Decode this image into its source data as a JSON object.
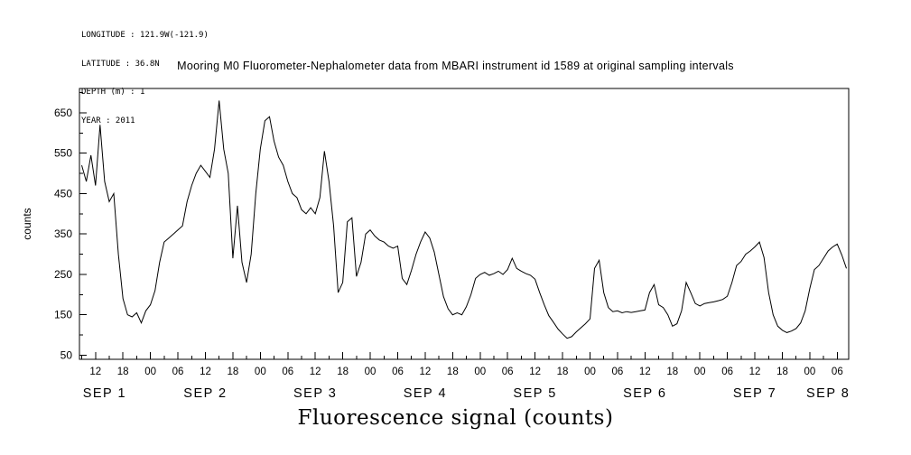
{
  "header": {
    "longitude": "LONGITUDE : 121.9W(-121.9)",
    "latitude": "LATITUDE : 36.8N",
    "depth": "DEPTH (m) : 1",
    "year": "YEAR : 2011"
  },
  "chart_data": {
    "type": "line",
    "title": "Mooring M0 Fluorometer-Nephalometer data from MBARI instrument id 1589 at original sampling intervals",
    "xlabel": "Fluorescence signal (counts)",
    "ylabel": "counts",
    "series_name": "Fluorescence signal",
    "line_color": "#000000",
    "x_unit": "hours from SEP 1 00:00, YEAR 2011",
    "x_start": 9,
    "x_step": 1,
    "xlim": [
      8.5,
      176.5
    ],
    "ylim": [
      40,
      710
    ],
    "y_ticks": [
      50,
      150,
      250,
      350,
      450,
      550,
      650
    ],
    "x_ticks": [
      {
        "t": 12,
        "label": "12"
      },
      {
        "t": 18,
        "label": "18"
      },
      {
        "t": 24,
        "label": "00"
      },
      {
        "t": 30,
        "label": "06"
      },
      {
        "t": 36,
        "label": "12"
      },
      {
        "t": 42,
        "label": "18"
      },
      {
        "t": 48,
        "label": "00"
      },
      {
        "t": 54,
        "label": "06"
      },
      {
        "t": 60,
        "label": "12"
      },
      {
        "t": 66,
        "label": "18"
      },
      {
        "t": 72,
        "label": "00"
      },
      {
        "t": 78,
        "label": "06"
      },
      {
        "t": 84,
        "label": "12"
      },
      {
        "t": 90,
        "label": "18"
      },
      {
        "t": 96,
        "label": "00"
      },
      {
        "t": 102,
        "label": "06"
      },
      {
        "t": 108,
        "label": "12"
      },
      {
        "t": 114,
        "label": "18"
      },
      {
        "t": 120,
        "label": "00"
      },
      {
        "t": 126,
        "label": "06"
      },
      {
        "t": 132,
        "label": "12"
      },
      {
        "t": 138,
        "label": "18"
      },
      {
        "t": 144,
        "label": "00"
      },
      {
        "t": 150,
        "label": "06"
      },
      {
        "t": 156,
        "label": "12"
      },
      {
        "t": 162,
        "label": "18"
      },
      {
        "t": 168,
        "label": "00"
      },
      {
        "t": 174,
        "label": "06"
      }
    ],
    "day_labels": [
      {
        "t": 14,
        "label": "SEP 1"
      },
      {
        "t": 36,
        "label": "SEP 2"
      },
      {
        "t": 60,
        "label": "SEP 3"
      },
      {
        "t": 84,
        "label": "SEP 4"
      },
      {
        "t": 108,
        "label": "SEP 5"
      },
      {
        "t": 132,
        "label": "SEP 6"
      },
      {
        "t": 156,
        "label": "SEP 7"
      },
      {
        "t": 172,
        "label": "SEP 8"
      }
    ],
    "values": [
      520,
      480,
      545,
      470,
      620,
      480,
      430,
      450,
      300,
      190,
      150,
      145,
      155,
      130,
      160,
      175,
      210,
      280,
      330,
      340,
      350,
      360,
      370,
      430,
      470,
      500,
      520,
      505,
      490,
      560,
      680,
      560,
      500,
      290,
      420,
      280,
      230,
      300,
      450,
      560,
      630,
      640,
      580,
      540,
      520,
      480,
      450,
      440,
      410,
      400,
      415,
      400,
      440,
      555,
      480,
      370,
      205,
      230,
      380,
      390,
      245,
      280,
      350,
      360,
      345,
      335,
      330,
      320,
      315,
      320,
      240,
      225,
      260,
      300,
      330,
      355,
      340,
      305,
      250,
      195,
      165,
      150,
      155,
      150,
      170,
      200,
      240,
      250,
      255,
      248,
      252,
      258,
      250,
      262,
      290,
      265,
      258,
      252,
      248,
      238,
      205,
      175,
      148,
      132,
      115,
      103,
      92,
      96,
      108,
      118,
      128,
      140,
      265,
      285,
      205,
      168,
      158,
      160,
      155,
      158,
      156,
      158,
      160,
      162,
      205,
      225,
      175,
      168,
      150,
      122,
      128,
      160,
      230,
      205,
      178,
      172,
      178,
      180,
      182,
      185,
      188,
      196,
      230,
      272,
      282,
      300,
      308,
      318,
      330,
      292,
      205,
      150,
      122,
      112,
      106,
      110,
      116,
      130,
      160,
      215,
      262,
      272,
      290,
      308,
      318,
      325,
      298,
      265
    ]
  }
}
